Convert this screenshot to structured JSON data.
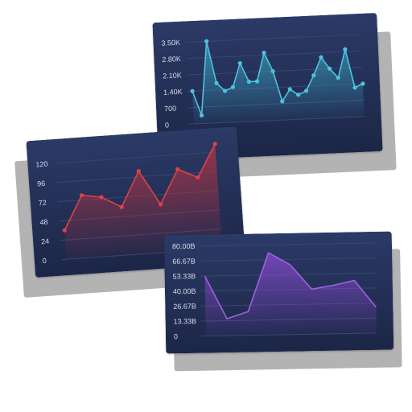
{
  "colors": {
    "panel_top": "#2b3a66",
    "panel_bottom": "#1c2647",
    "grid": "#3a4670",
    "shadow": "#b3b3b3"
  },
  "chart_data": [
    {
      "type": "area",
      "title": "",
      "xlabel": "",
      "ylabel": "",
      "ylim": [
        0,
        3500
      ],
      "y_ticks": [
        "0",
        "700",
        "1.40K",
        "2.10K",
        "2.80K",
        "3.50K"
      ],
      "grid": true,
      "line_color": "#4ec1dd",
      "fill_color": "#3aa6c4",
      "markers": true,
      "series": [
        {
          "values": [
            1400,
            350,
            3500,
            1700,
            1350,
            1500,
            2500,
            1700,
            1700,
            2900,
            2100,
            800,
            1300,
            1050,
            1200,
            1850,
            2600,
            2100,
            1700,
            2900,
            1250,
            1400
          ]
        }
      ]
    },
    {
      "type": "area",
      "title": "",
      "xlabel": "",
      "ylabel": "",
      "ylim": [
        0,
        120
      ],
      "y_ticks": [
        "0",
        "24",
        "48",
        "72",
        "96",
        "120"
      ],
      "grid": true,
      "line_color": "#e0404a",
      "fill_color": "#b8323f",
      "markers": true,
      "series": [
        {
          "values": [
            36,
            78,
            74,
            60,
            103,
            60,
            102,
            90,
            130
          ]
        }
      ]
    },
    {
      "type": "area",
      "title": "",
      "xlabel": "",
      "ylabel": "",
      "ylim": [
        0,
        80
      ],
      "y_ticks": [
        "0",
        "13.33B",
        "26.67B",
        "40.00B",
        "53.33B",
        "66.67B",
        "80.00B"
      ],
      "grid": true,
      "line_color": "#a060e0",
      "fill_color": "#8a4ad0",
      "markers": false,
      "series": [
        {
          "values": [
            53,
            15,
            21,
            73,
            62,
            40,
            43,
            47,
            23
          ]
        }
      ]
    }
  ]
}
